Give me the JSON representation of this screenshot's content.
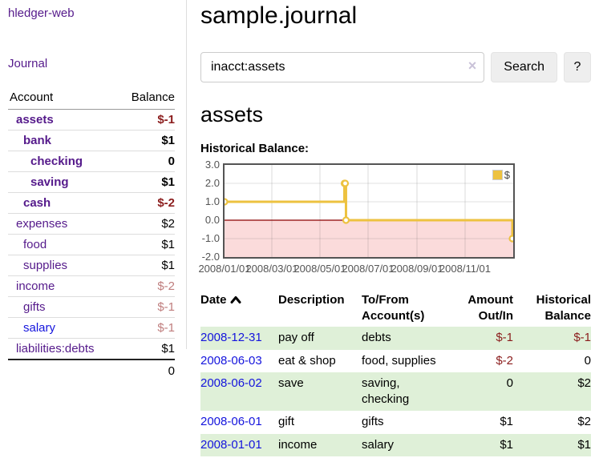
{
  "colors": {
    "link_visited_purple": "#551A8B",
    "link_unvisited_blue": "#1414dd",
    "negative_strong": "#8b1d1d",
    "negative_soft": "#bf7d7d",
    "row_highlight_green": "#dff0d8",
    "chart_series_yellow": "#EDC240",
    "chart_negative_region": "#fbdbdb",
    "chart_zero_line": "#8b0000"
  },
  "app": {
    "title": "hledger-web"
  },
  "sidebar": {
    "journal_link": "Journal",
    "accounts": {
      "header_account": "Account",
      "header_balance": "Balance",
      "rows": [
        {
          "name": "assets",
          "balance": "$-1",
          "indent": 1,
          "bold": true,
          "neg": "strong"
        },
        {
          "name": "bank",
          "balance": "$1",
          "indent": 2,
          "bold": true
        },
        {
          "name": "checking",
          "balance": "0",
          "indent": 3,
          "bold": true
        },
        {
          "name": "saving",
          "balance": "$1",
          "indent": 3,
          "bold": true
        },
        {
          "name": "cash",
          "balance": "$-2",
          "indent": 2,
          "bold": true,
          "neg": "strong"
        },
        {
          "name": "expenses",
          "balance": "$2",
          "indent": 1
        },
        {
          "name": "food",
          "balance": "$1",
          "indent": 2
        },
        {
          "name": "supplies",
          "balance": "$1",
          "indent": 2
        },
        {
          "name": "income",
          "balance": "$-2",
          "indent": 1,
          "neg": "soft"
        },
        {
          "name": "gifts",
          "balance": "$-1",
          "indent": 2,
          "neg": "soft"
        },
        {
          "name": "salary",
          "balance": "$-1",
          "indent": 2,
          "neg": "soft",
          "unvisited": true
        },
        {
          "name": "liabilities:debts",
          "balance": "$1",
          "indent": 1
        }
      ],
      "total": "0"
    }
  },
  "header": {
    "title": "sample.journal"
  },
  "search": {
    "value": "inacct:assets",
    "clear_icon": "×",
    "search_button": "Search",
    "help_button": "?"
  },
  "account_page": {
    "title": "assets",
    "section_label": "Historical Balance:"
  },
  "chart_data": {
    "type": "line",
    "step": true,
    "title": "Historical Balance:",
    "legend_label": "$",
    "legend_position": "top-right",
    "series": [
      {
        "name": "$",
        "color": "#EDC240",
        "points": [
          [
            "2008-01-01",
            1
          ],
          [
            "2008-06-01",
            2
          ],
          [
            "2008-06-02",
            2
          ],
          [
            "2008-06-03",
            0
          ],
          [
            "2008-12-31",
            -1
          ]
        ]
      }
    ],
    "x_range": [
      "2008-01-01",
      "2008-12-31"
    ],
    "ylim": [
      -2,
      3
    ],
    "y_ticks": [
      "3.0",
      "2.0",
      "1.0",
      "0.0",
      "-1.0",
      "-2.0"
    ],
    "x_ticks": [
      "2008/01/01",
      "2008/03/01",
      "2008/05/01",
      "2008/07/01",
      "2008/09/01",
      "2008/11/01"
    ],
    "grid": true,
    "negative_region_color": "#fbdbdb",
    "zero_line_color": "#8b0000"
  },
  "register": {
    "headers": [
      {
        "lines": [
          "Date"
        ],
        "sort": "asc"
      },
      {
        "lines": [
          "Description"
        ]
      },
      {
        "lines": [
          "To/From",
          "Account(s)"
        ]
      },
      {
        "lines": [
          "Amount",
          "Out/In"
        ],
        "align": "right"
      },
      {
        "lines": [
          "Historical",
          "Balance"
        ],
        "align": "right"
      }
    ],
    "rows": [
      {
        "date": "2008-12-31",
        "description": "pay off",
        "accounts": "debts",
        "amount": "$-1",
        "amount_neg": true,
        "balance": "$-1",
        "balance_neg": true,
        "highlight": true
      },
      {
        "date": "2008-06-03",
        "description": "eat & shop",
        "accounts": "food, supplies",
        "amount": "$-2",
        "amount_neg": true,
        "balance": "0",
        "balance_neg": false,
        "highlight": false
      },
      {
        "date": "2008-06-02",
        "description": "save",
        "accounts": "saving,\nchecking",
        "amount": "0",
        "amount_neg": false,
        "balance": "$2",
        "balance_neg": false,
        "highlight": true
      },
      {
        "date": "2008-06-01",
        "description": "gift",
        "accounts": "gifts",
        "amount": "$1",
        "amount_neg": false,
        "balance": "$2",
        "balance_neg": false,
        "highlight": false
      },
      {
        "date": "2008-01-01",
        "description": "income",
        "accounts": "salary",
        "amount": "$1",
        "amount_neg": false,
        "balance": "$1",
        "balance_neg": false,
        "highlight": true
      }
    ]
  }
}
